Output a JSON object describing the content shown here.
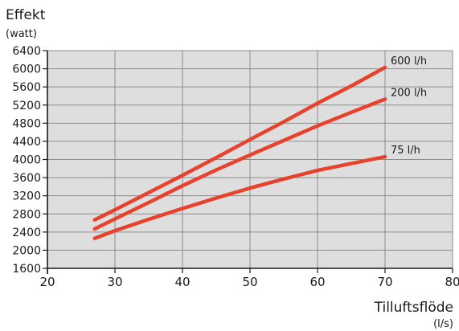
{
  "chart_data": {
    "type": "line",
    "ylabel": "Effekt",
    "ylabel_unit": "(watt)",
    "xlabel": "Tilluftsflöde",
    "xlabel_unit": "(l/s)",
    "xlim": [
      20,
      80
    ],
    "ylim": [
      1600,
      6400
    ],
    "xticks": [
      20,
      30,
      40,
      50,
      60,
      70,
      80
    ],
    "yticks": [
      1600,
      2000,
      2400,
      2800,
      3200,
      3600,
      4000,
      4400,
      4800,
      5200,
      5600,
      6000,
      6400
    ],
    "grid": true,
    "plot_background": "#dedede",
    "series_color": "#e8412c",
    "series": [
      {
        "name": "600 l/h",
        "x": [
          27,
          30,
          35,
          40,
          45,
          50,
          55,
          60,
          65,
          70
        ],
        "y": [
          2670,
          2890,
          3270,
          3650,
          4040,
          4440,
          4830,
          5240,
          5620,
          6030
        ]
      },
      {
        "name": "200 l/h",
        "x": [
          27,
          30,
          35,
          40,
          45,
          50,
          55,
          60,
          65,
          70
        ],
        "y": [
          2470,
          2690,
          3050,
          3420,
          3770,
          4100,
          4420,
          4740,
          5040,
          5330
        ]
      },
      {
        "name": "75 l/h",
        "x": [
          27,
          30,
          35,
          40,
          45,
          50,
          55,
          60,
          65,
          70
        ],
        "y": [
          2260,
          2430,
          2680,
          2920,
          3150,
          3370,
          3570,
          3760,
          3910,
          4060
        ]
      }
    ]
  }
}
